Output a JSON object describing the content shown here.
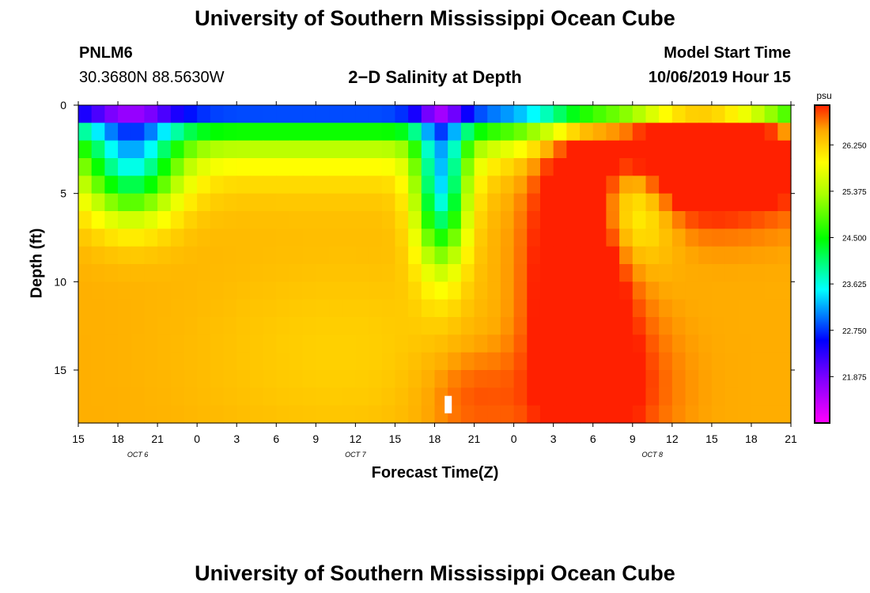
{
  "page": {
    "title_top": "University of Southern Mississippi Ocean Cube",
    "title_bottom": "University of Southern Mississippi Ocean Cube",
    "station_id": "PNLM6",
    "station_coords": "30.3680N 88.5630W",
    "chart_title": "2−D Salinity at Depth",
    "model_start_label": "Model Start Time",
    "model_start_value": "10/06/2019 Hour 15"
  },
  "chart_data": {
    "type": "heatmap",
    "title": "2−D Salinity at Depth",
    "xlabel": "Forecast Time(Z)",
    "ylabel": "Depth (ft)",
    "x_hours_from_start": [
      0,
      54
    ],
    "x_ticks": [
      {
        "h": 0,
        "label": "15"
      },
      {
        "h": 3,
        "label": "18"
      },
      {
        "h": 6,
        "label": "21"
      },
      {
        "h": 9,
        "label": "0"
      },
      {
        "h": 12,
        "label": "3"
      },
      {
        "h": 15,
        "label": "6"
      },
      {
        "h": 18,
        "label": "9"
      },
      {
        "h": 21,
        "label": "12"
      },
      {
        "h": 24,
        "label": "15"
      },
      {
        "h": 27,
        "label": "18"
      },
      {
        "h": 30,
        "label": "21"
      },
      {
        "h": 33,
        "label": "0"
      },
      {
        "h": 36,
        "label": "3"
      },
      {
        "h": 39,
        "label": "6"
      },
      {
        "h": 42,
        "label": "9"
      },
      {
        "h": 45,
        "label": "12"
      },
      {
        "h": 48,
        "label": "15"
      },
      {
        "h": 51,
        "label": "18"
      },
      {
        "h": 54,
        "label": "21"
      }
    ],
    "date_labels": [
      {
        "h": 4.5,
        "label": "OCT 6"
      },
      {
        "h": 21,
        "label": "OCT 7"
      },
      {
        "h": 43.5,
        "label": "OCT 8"
      }
    ],
    "ylim": [
      0,
      18
    ],
    "y_ticks": [
      0,
      5,
      10,
      15
    ],
    "colorbar": {
      "unit": "psu",
      "min": 21.0,
      "max": 27.0,
      "tick_labels": [
        "26.250",
        "25.375",
        "24.500",
        "23.625",
        "22.750",
        "21.875"
      ],
      "tick_values": [
        26.25,
        25.375,
        24.5,
        23.625,
        22.75,
        21.875
      ]
    },
    "grid_cols": 54,
    "grid_rows": 18,
    "marker": {
      "h": 28,
      "depth": 17
    }
  }
}
